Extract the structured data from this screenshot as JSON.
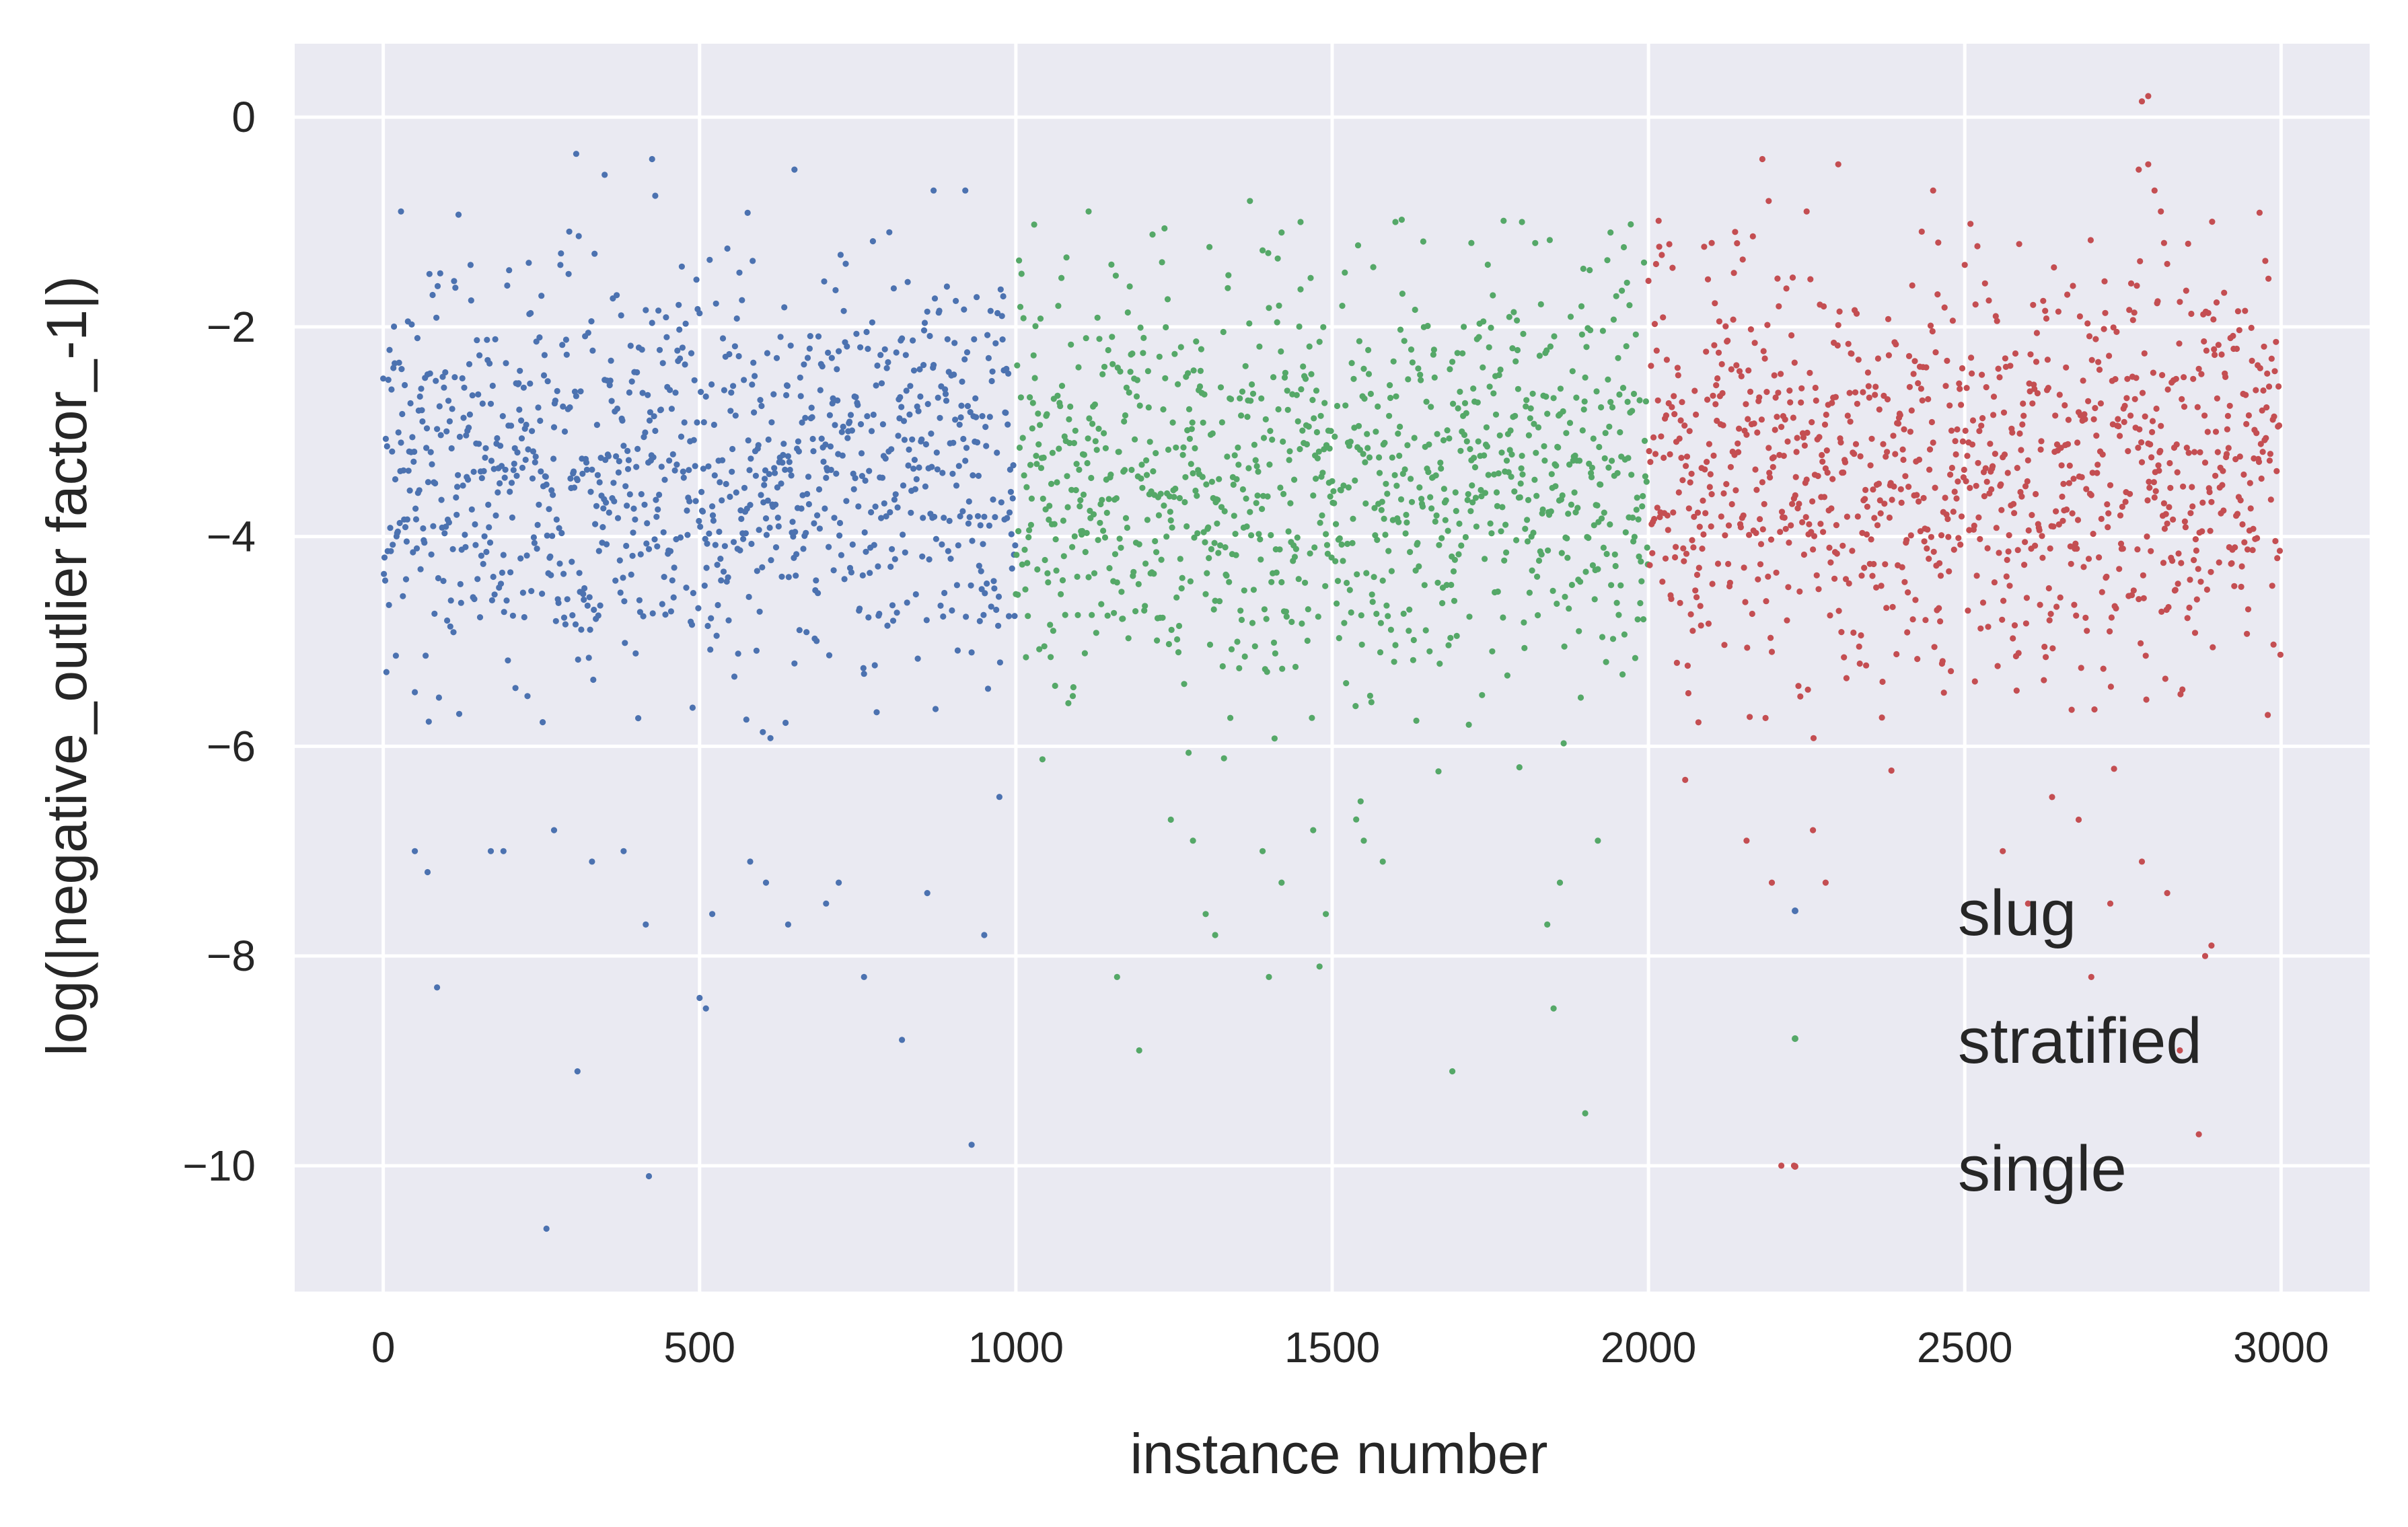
{
  "chart_data": {
    "type": "scatter",
    "title": "",
    "xlabel": "instance number",
    "ylabel": "log(|negative_outlier factor_-1|)",
    "xlim": [
      -140,
      3140
    ],
    "ylim": [
      -11.2,
      0.7
    ],
    "xticks": [
      {
        "value": 0,
        "label": "0"
      },
      {
        "value": 500,
        "label": "500"
      },
      {
        "value": 1000,
        "label": "1000"
      },
      {
        "value": 1500,
        "label": "1500"
      },
      {
        "value": 2000,
        "label": "2000"
      },
      {
        "value": 2500,
        "label": "2500"
      },
      {
        "value": 3000,
        "label": "3000"
      }
    ],
    "yticks": [
      {
        "value": 0,
        "label": "0"
      },
      {
        "value": -2,
        "label": "−2"
      },
      {
        "value": -4,
        "label": "−4"
      },
      {
        "value": -6,
        "label": "−6"
      },
      {
        "value": -8,
        "label": "−8"
      },
      {
        "value": -10,
        "label": "−10"
      }
    ],
    "grid": true,
    "background": "#eaeaf2",
    "legend_position": "lower-right",
    "legend": [
      "slug",
      "stratified",
      "single"
    ],
    "series": [
      {
        "name": "slug",
        "color": "#4c72b0",
        "x_range": [
          0,
          1000
        ],
        "center": -3.4,
        "spread": 1.15,
        "highlights": [
          [
            28,
            -0.9
          ],
          [
            305,
            -0.35
          ],
          [
            350,
            -0.55
          ],
          [
            425,
            -0.4
          ],
          [
            430,
            -0.75
          ],
          [
            650,
            -0.5
          ],
          [
            870,
            -0.7
          ],
          [
            920,
            -0.7
          ],
          [
            85,
            -8.3
          ],
          [
            258,
            -10.6
          ],
          [
            307,
            -9.1
          ],
          [
            415,
            -7.7
          ],
          [
            420,
            -10.1
          ],
          [
            500,
            -8.4
          ],
          [
            510,
            -8.5
          ],
          [
            520,
            -7.6
          ],
          [
            580,
            -7.1
          ],
          [
            605,
            -7.3
          ],
          [
            640,
            -7.7
          ],
          [
            700,
            -7.5
          ],
          [
            720,
            -7.3
          ],
          [
            760,
            -8.2
          ],
          [
            820,
            -8.8
          ],
          [
            860,
            -7.4
          ],
          [
            930,
            -9.8
          ],
          [
            950,
            -7.8
          ],
          [
            50,
            -7.0
          ],
          [
            70,
            -7.2
          ],
          [
            170,
            -7.0
          ],
          [
            190,
            -7.0
          ],
          [
            270,
            -6.8
          ],
          [
            330,
            -7.1
          ],
          [
            380,
            -7.0
          ]
        ]
      },
      {
        "name": "stratified",
        "color": "#55a868",
        "x_range": [
          1000,
          2000
        ],
        "center": -3.5,
        "spread": 1.15,
        "highlights": [
          [
            1115,
            -0.9
          ],
          [
            1370,
            -0.8
          ],
          [
            1420,
            -1.1
          ],
          [
            1450,
            -1.0
          ],
          [
            1600,
            -1.0
          ],
          [
            1720,
            -1.2
          ],
          [
            1800,
            -1.0
          ],
          [
            1940,
            -1.1
          ],
          [
            1160,
            -8.2
          ],
          [
            1195,
            -8.9
          ],
          [
            1280,
            -6.9
          ],
          [
            1300,
            -7.6
          ],
          [
            1315,
            -7.8
          ],
          [
            1400,
            -8.2
          ],
          [
            1420,
            -7.3
          ],
          [
            1470,
            -6.8
          ],
          [
            1480,
            -8.1
          ],
          [
            1490,
            -7.6
          ],
          [
            1550,
            -6.9
          ],
          [
            1580,
            -7.1
          ],
          [
            1690,
            -9.1
          ],
          [
            1840,
            -7.7
          ],
          [
            1850,
            -8.5
          ],
          [
            1860,
            -7.3
          ],
          [
            1900,
            -9.5
          ],
          [
            1920,
            -6.9
          ],
          [
            1245,
            -6.7
          ],
          [
            1390,
            -7.0
          ]
        ]
      },
      {
        "name": "single",
        "color": "#c44e52",
        "x_range": [
          2000,
          3000
        ],
        "center": -3.4,
        "spread": 1.2,
        "highlights": [
          [
            2780,
            0.15
          ],
          [
            2790,
            0.2
          ],
          [
            2775,
            -0.5
          ],
          [
            2790,
            -0.45
          ],
          [
            2800,
            -0.7
          ],
          [
            2810,
            -0.9
          ],
          [
            2815,
            -1.2
          ],
          [
            2820,
            -1.4
          ],
          [
            2180,
            -0.4
          ],
          [
            2300,
            -0.45
          ],
          [
            2190,
            -0.8
          ],
          [
            2250,
            -0.9
          ],
          [
            2450,
            -0.7
          ],
          [
            2100,
            -1.2
          ],
          [
            2155,
            -6.9
          ],
          [
            2195,
            -7.3
          ],
          [
            2210,
            -10.0
          ],
          [
            2230,
            -10.0
          ],
          [
            2260,
            -6.8
          ],
          [
            2280,
            -7.3
          ],
          [
            2560,
            -7.0
          ],
          [
            2600,
            -7.5
          ],
          [
            2680,
            -6.7
          ],
          [
            2730,
            -7.5
          ],
          [
            2780,
            -7.1
          ],
          [
            2820,
            -7.4
          ],
          [
            2840,
            -8.9
          ],
          [
            2870,
            -9.7
          ],
          [
            2880,
            -8.0
          ],
          [
            2890,
            -7.9
          ],
          [
            2700,
            -8.2
          ]
        ]
      }
    ]
  }
}
